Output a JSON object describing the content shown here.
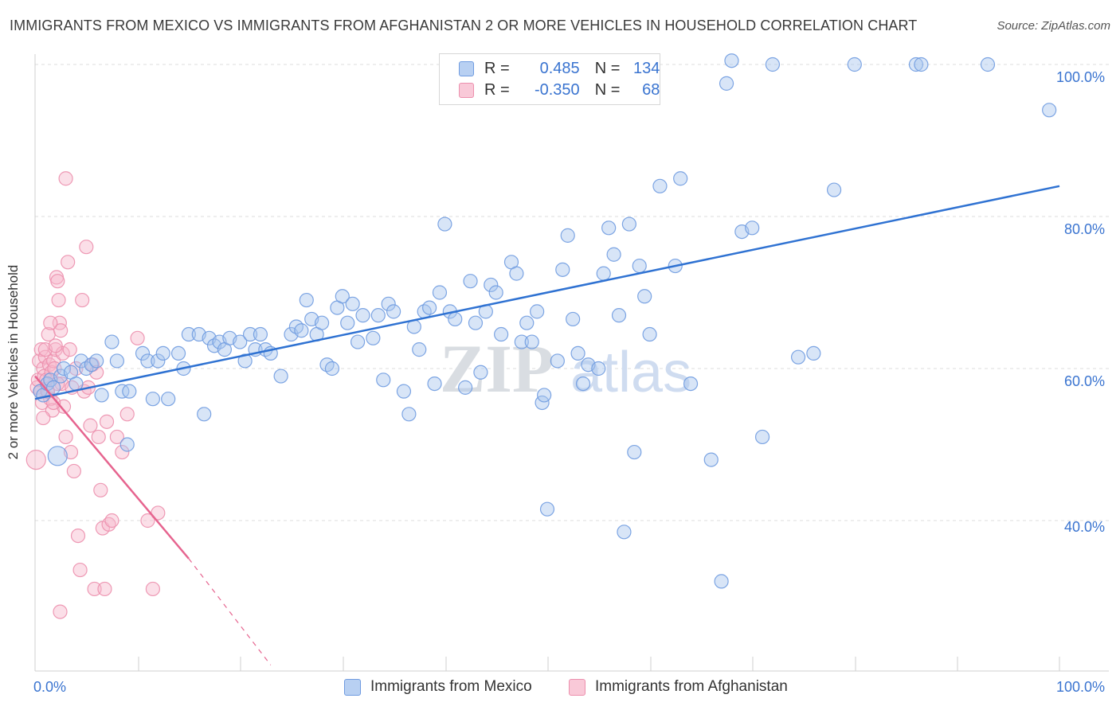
{
  "title": "IMMIGRANTS FROM MEXICO VS IMMIGRANTS FROM AFGHANISTAN 2 OR MORE VEHICLES IN HOUSEHOLD CORRELATION CHART",
  "source": "Source: ZipAtlas.com",
  "colors": {
    "mexico_fill": "#a9c5ee",
    "mexico_stroke": "#6f9be0",
    "mexico_line": "#2f72d2",
    "afghanistan_fill": "#f6b8cc",
    "afghanistan_stroke": "#ec8fad",
    "afghanistan_line": "#e6648f",
    "grid": "#dcdcdc",
    "axis_text": "#3a74d0"
  },
  "legend": {
    "rows": [
      {
        "r_label": "R =",
        "r_value": "0.485",
        "n_label": "N =",
        "n_value": "134"
      },
      {
        "r_label": "R =",
        "r_value": "-0.350",
        "n_label": "N =",
        "n_value": "68"
      }
    ]
  },
  "watermark": {
    "zip": "ZIP",
    "atlas": "atlas"
  },
  "chart_data": {
    "type": "scatter",
    "title": "IMMIGRANTS FROM MEXICO VS IMMIGRANTS FROM AFGHANISTAN 2 OR MORE VEHICLES IN HOUSEHOLD CORRELATION CHART",
    "xlabel": "",
    "ylabel": "2 or more Vehicles in Household",
    "xlim": [
      0,
      100
    ],
    "ylim": [
      20,
      102
    ],
    "x_tick_labels": [
      "0.0%",
      "100.0%"
    ],
    "y_ticks": [
      40,
      60,
      80,
      100
    ],
    "y_tick_labels": [
      "40.0%",
      "60.0%",
      "80.0%",
      "100.0%"
    ],
    "grid": true,
    "legend_placement": "top-center",
    "series": [
      {
        "name": "Immigrants from Mexico",
        "r": 0.485,
        "n": 134,
        "trend": {
          "x": [
            0,
            100
          ],
          "y": [
            56,
            84
          ]
        },
        "trend_dashed": null,
        "points": [
          [
            0.5,
            57
          ],
          [
            0.8,
            56.5
          ],
          [
            1.2,
            58
          ],
          [
            1.5,
            58.5
          ],
          [
            1.8,
            57.5
          ],
          [
            2.2,
            48.5
          ],
          [
            2.5,
            59
          ],
          [
            2.8,
            60
          ],
          [
            3.5,
            59.5
          ],
          [
            4.0,
            58
          ],
          [
            4.5,
            61
          ],
          [
            5.0,
            60
          ],
          [
            5.5,
            60.5
          ],
          [
            6.0,
            61
          ],
          [
            6.5,
            56.5
          ],
          [
            7.5,
            63.5
          ],
          [
            8.0,
            61
          ],
          [
            8.5,
            57
          ],
          [
            9.0,
            50
          ],
          [
            9.2,
            57
          ],
          [
            10.5,
            62
          ],
          [
            11.0,
            61
          ],
          [
            11.5,
            56
          ],
          [
            12.0,
            61
          ],
          [
            12.5,
            62
          ],
          [
            13.0,
            56
          ],
          [
            14.0,
            62
          ],
          [
            14.5,
            60
          ],
          [
            15.0,
            64.5
          ],
          [
            16.0,
            64.5
          ],
          [
            16.5,
            54
          ],
          [
            17.0,
            64
          ],
          [
            17.5,
            63
          ],
          [
            18.0,
            63.5
          ],
          [
            18.5,
            62.5
          ],
          [
            19.0,
            64
          ],
          [
            20.0,
            63.5
          ],
          [
            20.5,
            61
          ],
          [
            21.0,
            64.5
          ],
          [
            21.5,
            62.5
          ],
          [
            22.0,
            64.5
          ],
          [
            22.5,
            62.5
          ],
          [
            23.0,
            62
          ],
          [
            24.0,
            59
          ],
          [
            25.0,
            64.5
          ],
          [
            25.5,
            65.5
          ],
          [
            26.0,
            65
          ],
          [
            26.5,
            69
          ],
          [
            27.0,
            66.5
          ],
          [
            27.5,
            64.5
          ],
          [
            28.0,
            66
          ],
          [
            28.5,
            60.5
          ],
          [
            29.0,
            60
          ],
          [
            29.5,
            68
          ],
          [
            30.0,
            69.5
          ],
          [
            30.5,
            66
          ],
          [
            31.0,
            68.5
          ],
          [
            31.5,
            63.5
          ],
          [
            32.0,
            67
          ],
          [
            33.0,
            64
          ],
          [
            33.5,
            67
          ],
          [
            34.0,
            58.5
          ],
          [
            34.5,
            68.5
          ],
          [
            35.0,
            67.5
          ],
          [
            36.0,
            57
          ],
          [
            36.5,
            54
          ],
          [
            37.0,
            65.5
          ],
          [
            37.5,
            62.5
          ],
          [
            38.0,
            67.5
          ],
          [
            38.5,
            68
          ],
          [
            39.0,
            58
          ],
          [
            39.5,
            70
          ],
          [
            40.0,
            79
          ],
          [
            40.5,
            67.5
          ],
          [
            41.0,
            66.5
          ],
          [
            42.0,
            57.5
          ],
          [
            42.5,
            71.5
          ],
          [
            43.0,
            66
          ],
          [
            43.5,
            59.5
          ],
          [
            44.0,
            67.5
          ],
          [
            44.5,
            71
          ],
          [
            45.0,
            70
          ],
          [
            45.5,
            64.5
          ],
          [
            46.5,
            74
          ],
          [
            47.0,
            72.5
          ],
          [
            47.5,
            63.5
          ],
          [
            48.0,
            66
          ],
          [
            48.5,
            63.5
          ],
          [
            49.0,
            67.5
          ],
          [
            49.5,
            55.5
          ],
          [
            49.7,
            56.5
          ],
          [
            50.0,
            41.5
          ],
          [
            51.0,
            61
          ],
          [
            51.5,
            73
          ],
          [
            52.0,
            77.5
          ],
          [
            52.5,
            66.5
          ],
          [
            53.0,
            62
          ],
          [
            53.5,
            58
          ],
          [
            54.0,
            60.5
          ],
          [
            55.0,
            60
          ],
          [
            55.5,
            72.5
          ],
          [
            56.0,
            78.5
          ],
          [
            56.5,
            75
          ],
          [
            57.0,
            67
          ],
          [
            57.5,
            38.5
          ],
          [
            58.0,
            79
          ],
          [
            58.5,
            49
          ],
          [
            59.0,
            73.5
          ],
          [
            59.5,
            69.5
          ],
          [
            60.0,
            64.5
          ],
          [
            61.0,
            84
          ],
          [
            62.5,
            73.5
          ],
          [
            63.0,
            85
          ],
          [
            64.0,
            58
          ],
          [
            66.0,
            48
          ],
          [
            67.0,
            32
          ],
          [
            67.5,
            97.5
          ],
          [
            68.0,
            100.5
          ],
          [
            69.0,
            78
          ],
          [
            70.0,
            78.5
          ],
          [
            71.0,
            51
          ],
          [
            72.0,
            100
          ],
          [
            74.5,
            61.5
          ],
          [
            76.0,
            62
          ],
          [
            78.0,
            83.5
          ],
          [
            80.0,
            100
          ],
          [
            86.0,
            100
          ],
          [
            86.5,
            100
          ],
          [
            93.0,
            100
          ],
          [
            99.0,
            94
          ]
        ]
      },
      {
        "name": "Immigrants from Afghanistan",
        "r": -0.35,
        "n": 68,
        "trend": {
          "x": [
            0,
            15
          ],
          "y": [
            59,
            35
          ]
        },
        "trend_dashed": {
          "x": [
            15,
            23
          ],
          "y": [
            35,
            21
          ]
        },
        "points": [
          [
            0.1,
            48
          ],
          [
            0.2,
            57.5
          ],
          [
            0.3,
            58.5
          ],
          [
            0.4,
            61
          ],
          [
            0.5,
            57
          ],
          [
            0.6,
            62.5
          ],
          [
            0.7,
            55.5
          ],
          [
            0.8,
            60
          ],
          [
            0.9,
            59
          ],
          [
            1.0,
            61.5
          ],
          [
            1.1,
            58.5
          ],
          [
            1.2,
            57
          ],
          [
            1.3,
            64.5
          ],
          [
            1.4,
            60.5
          ],
          [
            1.5,
            56
          ],
          [
            1.6,
            59.5
          ],
          [
            1.7,
            54.5
          ],
          [
            1.8,
            61
          ],
          [
            1.9,
            60
          ],
          [
            2.0,
            62.5
          ],
          [
            2.1,
            72
          ],
          [
            2.2,
            71.5
          ],
          [
            2.3,
            69
          ],
          [
            2.4,
            66
          ],
          [
            2.5,
            65
          ],
          [
            2.6,
            58
          ],
          [
            2.7,
            62
          ],
          [
            2.8,
            55
          ],
          [
            3.0,
            51
          ],
          [
            3.2,
            74
          ],
          [
            3.4,
            62.5
          ],
          [
            3.5,
            49
          ],
          [
            3.6,
            57.5
          ],
          [
            3.8,
            46.5
          ],
          [
            4.0,
            60
          ],
          [
            4.2,
            38
          ],
          [
            4.4,
            33.5
          ],
          [
            4.6,
            69
          ],
          [
            4.8,
            57
          ],
          [
            5.0,
            76
          ],
          [
            5.2,
            57.5
          ],
          [
            5.4,
            52.5
          ],
          [
            5.6,
            60.5
          ],
          [
            5.8,
            31
          ],
          [
            6.0,
            59.5
          ],
          [
            6.2,
            51
          ],
          [
            6.4,
            44
          ],
          [
            6.6,
            39
          ],
          [
            6.8,
            31
          ],
          [
            7.0,
            53
          ],
          [
            7.2,
            39.5
          ],
          [
            7.5,
            40
          ],
          [
            8.0,
            51
          ],
          [
            8.5,
            49
          ],
          [
            9.0,
            54
          ],
          [
            10.0,
            64
          ],
          [
            11.0,
            40
          ],
          [
            11.5,
            31
          ],
          [
            12.0,
            41
          ],
          [
            2.45,
            28
          ],
          [
            1.0,
            62.5
          ],
          [
            1.5,
            66
          ],
          [
            2.0,
            63
          ],
          [
            3.0,
            85
          ],
          [
            0.8,
            53.5
          ],
          [
            1.8,
            55.5
          ],
          [
            2.2,
            58
          ],
          [
            1.25,
            57
          ]
        ]
      }
    ]
  },
  "bottom_legend": {
    "mexico_label": "Immigrants from Mexico",
    "afghanistan_label": "Immigrants from Afghanistan"
  }
}
